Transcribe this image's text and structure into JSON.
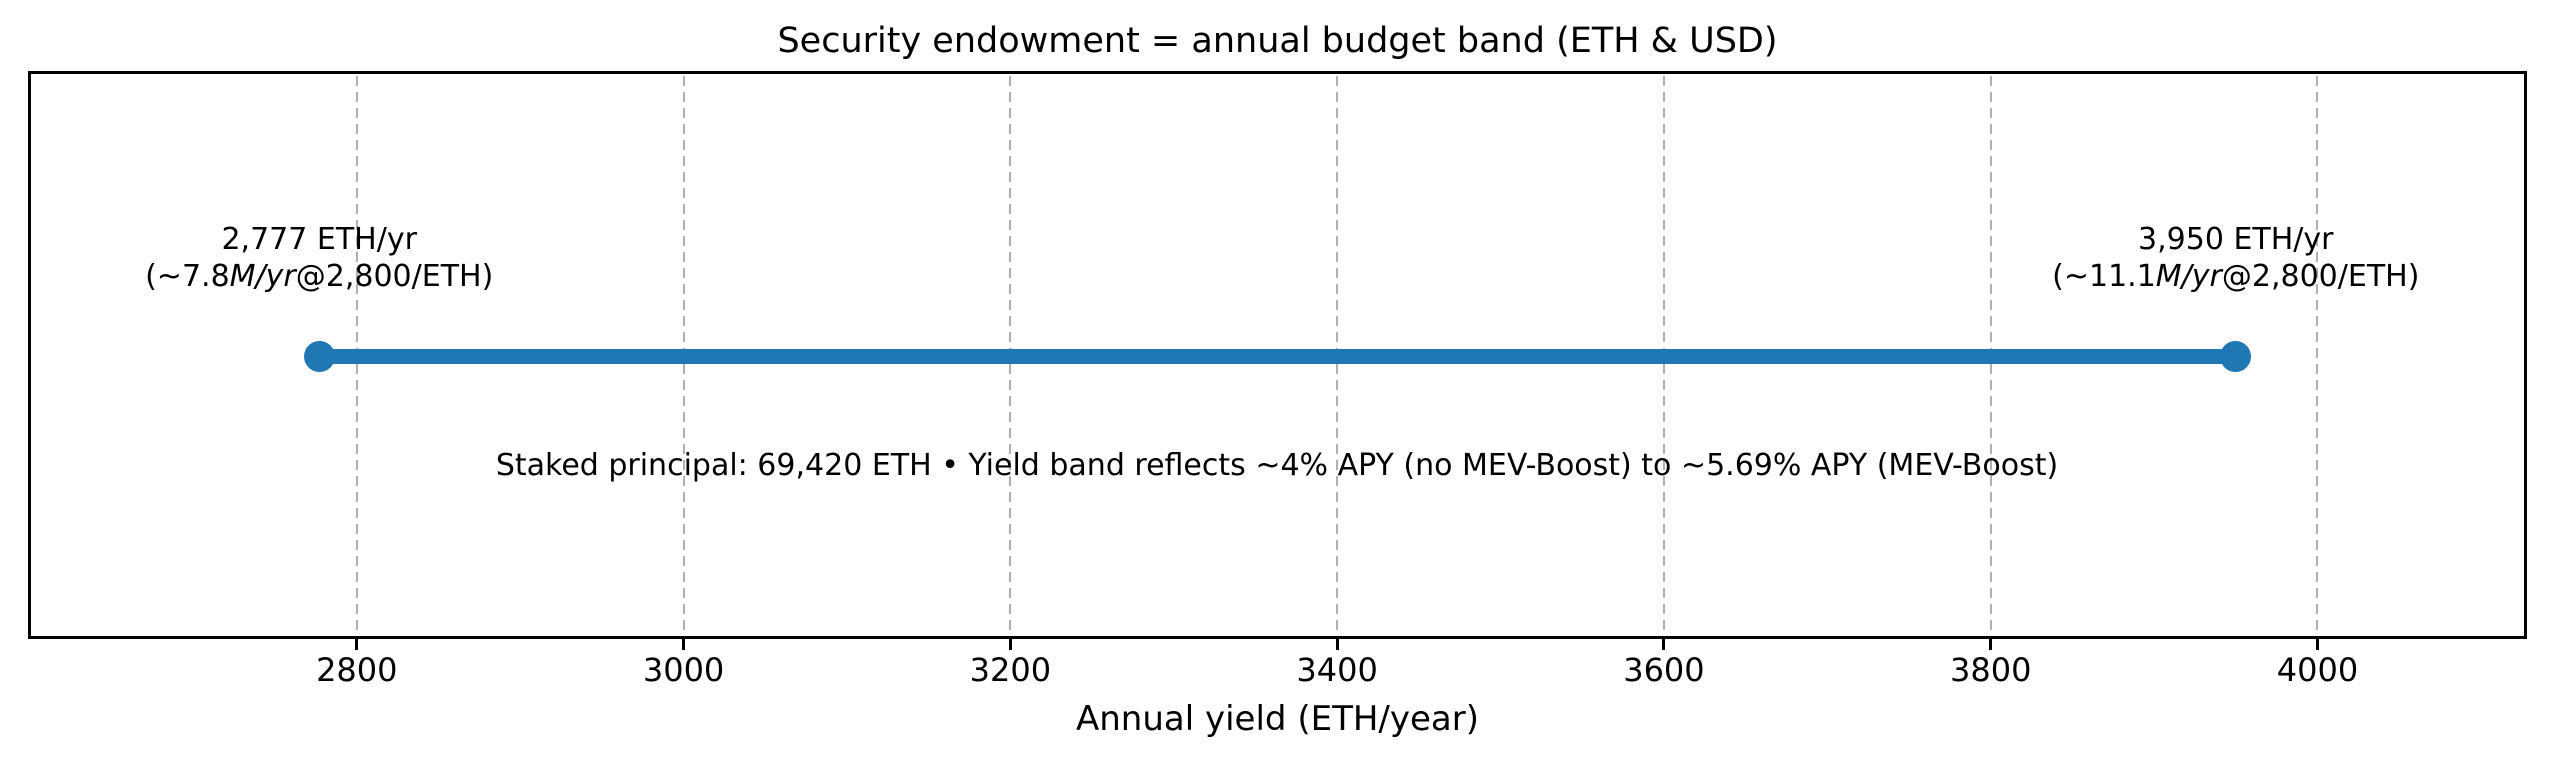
{
  "chart_data": {
    "type": "line",
    "subtype": "dumbbell-range-band",
    "title": "Security endowment = annual budget band (ETH & USD)",
    "xlabel": "Annual yield (ETH/year)",
    "x_ticks": [
      2800,
      3000,
      3200,
      3400,
      3600,
      3800,
      4000
    ],
    "xlim": [
      2600,
      4127
    ],
    "grid": "vertical-dashed",
    "legend": "none",
    "band": {
      "start_value_eth_per_year": 2777,
      "end_value_eth_per_year": 3950,
      "start_label_line1": "2,777 ETH/yr",
      "start_label_line2_segments": [
        {
          "text": "(~7.8",
          "italic": false
        },
        {
          "text": "M/yr",
          "italic": true
        },
        {
          "text": "@2,800/ETH)",
          "italic": false
        }
      ],
      "end_label_line1": "3,950 ETH/yr",
      "end_label_line2_segments": [
        {
          "text": "(~11.1",
          "italic": false
        },
        {
          "text": "M/yr",
          "italic": true
        },
        {
          "text": "@2,800/ETH)",
          "italic": false
        }
      ]
    },
    "center_note": "Staked principal: 69,420 ETH • Yield band reflects ~4% APY (no MEV-Boost) to ~5.69% APY (MEV-Boost)",
    "colors": {
      "band": "#1f77b4",
      "grid": "#b0b0b0",
      "text": "#000000",
      "spine": "#000000"
    }
  }
}
